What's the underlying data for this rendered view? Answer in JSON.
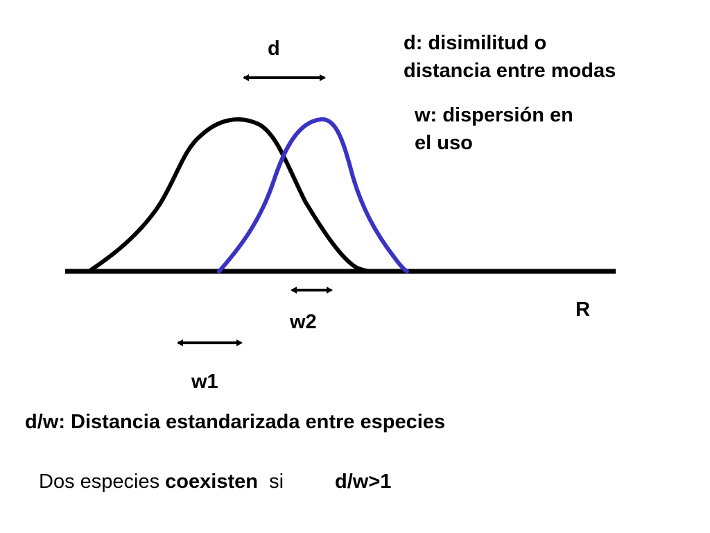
{
  "labels": {
    "d": "d",
    "d_definition_line1": "d: disimilitud o",
    "d_definition_line2": "distancia entre modas",
    "w_definition_line1": "w: dispersión en",
    "w_definition_line2": "el uso",
    "r_axis": "R",
    "w1": "w1",
    "w2": "w2"
  },
  "standardized_distance": "d/w: Distancia estandarizada entre especies",
  "coexistence_rule": {
    "prefix": "Dos especies ",
    "keyword": "coexisten",
    "suffix": "  si",
    "condition": "d/w>1"
  },
  "colors": {
    "curve1": "#000000",
    "curve2": "#3b33c4",
    "axis": "#000000"
  }
}
